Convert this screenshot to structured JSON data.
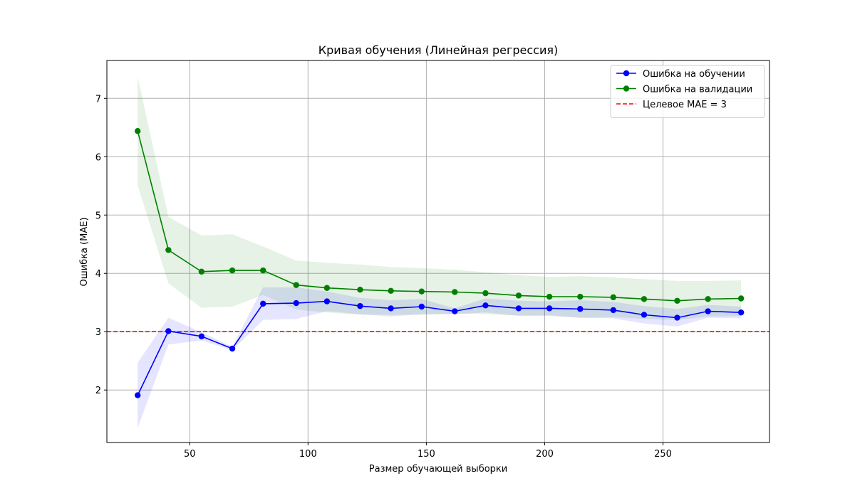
{
  "chart_data": {
    "type": "line",
    "title": "Кривая обучения (Линейная регрессия)",
    "xlabel": "Размер обучающей выборки",
    "ylabel": "Ошибка (MAE)",
    "xlim": [
      15,
      295
    ],
    "ylim": [
      1.1,
      7.65
    ],
    "x_ticks": [
      50,
      100,
      150,
      200,
      250
    ],
    "y_ticks": [
      2,
      3,
      4,
      5,
      6,
      7
    ],
    "grid": true,
    "legend_position": "top-right",
    "x": [
      28,
      41,
      55,
      68,
      81,
      95,
      108,
      122,
      135,
      148,
      162,
      175,
      189,
      202,
      215,
      229,
      242,
      256,
      269,
      283
    ],
    "series": [
      {
        "name": "Ошибка на обучении",
        "color": "#0000ff",
        "marker": "circle",
        "values": [
          1.91,
          3.01,
          2.92,
          2.71,
          3.48,
          3.49,
          3.52,
          3.44,
          3.4,
          3.43,
          3.35,
          3.45,
          3.4,
          3.4,
          3.39,
          3.37,
          3.29,
          3.24,
          3.35,
          3.33
        ],
        "band_lower": [
          1.35,
          2.78,
          2.85,
          2.68,
          3.2,
          3.22,
          3.35,
          3.3,
          3.26,
          3.3,
          3.3,
          3.33,
          3.27,
          3.28,
          3.24,
          3.23,
          3.14,
          3.09,
          3.24,
          3.23
        ],
        "band_upper": [
          2.47,
          3.24,
          2.99,
          2.74,
          3.76,
          3.76,
          3.69,
          3.58,
          3.54,
          3.56,
          3.4,
          3.57,
          3.53,
          3.52,
          3.54,
          3.51,
          3.44,
          3.39,
          3.46,
          3.43
        ]
      },
      {
        "name": "Ошибка на валидации",
        "color": "#008000",
        "marker": "circle",
        "values": [
          6.44,
          4.4,
          4.03,
          4.05,
          4.05,
          3.8,
          3.75,
          3.72,
          3.7,
          3.69,
          3.68,
          3.66,
          3.62,
          3.6,
          3.6,
          3.59,
          3.56,
          3.53,
          3.56,
          3.57
        ],
        "band_lower": [
          5.51,
          3.83,
          3.41,
          3.43,
          3.63,
          3.38,
          3.33,
          3.29,
          3.29,
          3.29,
          3.31,
          3.3,
          3.28,
          3.27,
          3.24,
          3.25,
          3.22,
          3.2,
          3.26,
          3.27
        ],
        "band_upper": [
          7.37,
          4.97,
          4.65,
          4.67,
          4.46,
          4.22,
          4.18,
          4.15,
          4.11,
          4.09,
          4.06,
          4.02,
          3.97,
          3.94,
          3.95,
          3.93,
          3.9,
          3.87,
          3.87,
          3.88
        ]
      }
    ],
    "reference_lines": [
      {
        "name": "Целевое MAE = 3",
        "y": 3,
        "color": "#ff0000",
        "style": "dashed"
      }
    ]
  }
}
